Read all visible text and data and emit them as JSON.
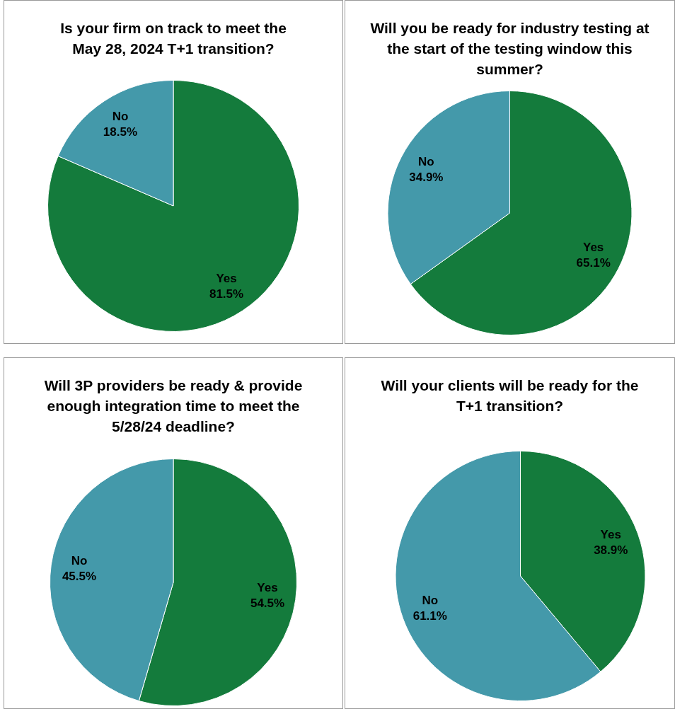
{
  "chart_data": [
    {
      "type": "pie",
      "title": "Is your firm on track to meet the May 28, 2024 T+1 transition?",
      "categories": [
        "Yes",
        "No"
      ],
      "values": [
        81.5,
        18.5
      ],
      "colors": [
        "#147b3c",
        "#4499aa"
      ],
      "value_labels": [
        "81.5%",
        "18.5%"
      ],
      "legend": false
    },
    {
      "type": "pie",
      "title": "Will you be ready for industry testing at the start of the testing window this summer?",
      "categories": [
        "Yes",
        "No"
      ],
      "values": [
        65.1,
        34.9
      ],
      "colors": [
        "#147b3c",
        "#4499aa"
      ],
      "value_labels": [
        "65.1%",
        "34.9%"
      ],
      "legend": false
    },
    {
      "type": "pie",
      "title": "Will 3P providers be ready & provide enough integration time to meet the 5/28/24 deadline?",
      "categories": [
        "Yes",
        "No"
      ],
      "values": [
        54.5,
        45.5
      ],
      "colors": [
        "#147b3c",
        "#4499aa"
      ],
      "value_labels": [
        "54.5%",
        "45.5%"
      ],
      "legend": false
    },
    {
      "type": "pie",
      "title": "Will your clients will be ready for the T+1 transition?",
      "categories": [
        "Yes",
        "No"
      ],
      "values": [
        38.9,
        61.1
      ],
      "colors": [
        "#147b3c",
        "#4499aa"
      ],
      "value_labels": [
        "38.9%",
        "61.1%"
      ],
      "legend": false
    }
  ]
}
